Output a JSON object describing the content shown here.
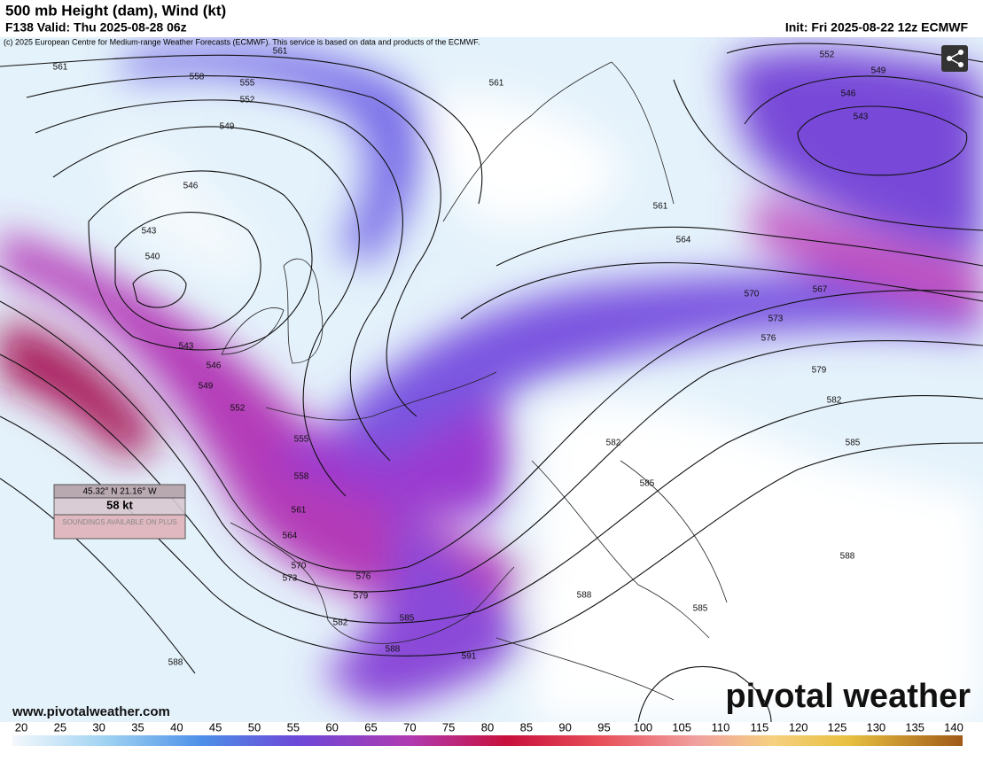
{
  "header": {
    "title": "500 mb Height (dam), Wind (kt)",
    "valid": "F138 Valid: Thu 2025-08-28 06z",
    "init": "Init: Fri 2025-08-22 12z ECMWF",
    "copyright": "(c) 2025 European Centre for Medium-range Weather Forecasts (ECMWF). This service is based on data and products of the ECMWF."
  },
  "contour_labels": [
    "561",
    "558",
    "555",
    "552",
    "549",
    "546",
    "543",
    "540",
    "543",
    "546",
    "549",
    "552",
    "555",
    "558",
    "561",
    "564",
    "570",
    "573",
    "576",
    "579",
    "582",
    "585",
    "588",
    "591",
    "588",
    "561",
    "561",
    "552",
    "549",
    "546",
    "543",
    "561",
    "564",
    "567",
    "570",
    "573",
    "576",
    "579",
    "582",
    "582",
    "585",
    "585",
    "588",
    "585",
    "588"
  ],
  "probe": {
    "coords": "45.32° N 21.16° W",
    "speed": "58 kt",
    "note": "SOUNDINGS AVAILABLE ON PLUS"
  },
  "footer": {
    "website": "www.pivotalweather.com",
    "brand": "pivotal weather"
  },
  "colorbar": {
    "labels": [
      20,
      25,
      30,
      35,
      40,
      45,
      50,
      55,
      60,
      65,
      70,
      75,
      80,
      85,
      90,
      95,
      100,
      105,
      110,
      115,
      120,
      125,
      130,
      135,
      140
    ]
  }
}
